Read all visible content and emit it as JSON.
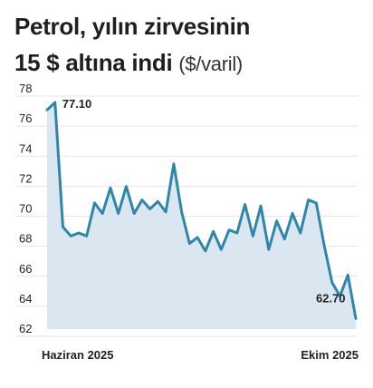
{
  "header": {
    "title_line1": "Petrol, yılın zirvesinin",
    "title_line2": "15 $ altına indi",
    "unit": "($/varil)"
  },
  "chart_data": {
    "type": "area",
    "title": "Petrol, yılın zirvesinin 15 $ altına indi",
    "ylabel": "($/varil)",
    "ylim": [
      62,
      78
    ],
    "y_ticks": [
      78,
      76,
      74,
      72,
      70,
      68,
      66,
      64,
      62
    ],
    "x_labels": [
      "Haziran 2025",
      "Ekim 2025"
    ],
    "annotations": [
      {
        "label": "77.10",
        "index": 1
      },
      {
        "label": "62.70",
        "index": 42
      }
    ],
    "colors": {
      "line": "#2f86a8",
      "fill": "#dbe7f0"
    },
    "series": [
      {
        "values": [
          76.6,
          77.1,
          68.8,
          68.2,
          68.4,
          68.2,
          70.4,
          69.7,
          71.4,
          69.7,
          71.5,
          69.7,
          70.6,
          70.0,
          70.5,
          69.8,
          73.0,
          69.8,
          67.7,
          68.1,
          67.2,
          68.5,
          67.3,
          68.6,
          68.4,
          70.3,
          68.2,
          70.2,
          67.3,
          69.2,
          68.0,
          69.7,
          68.4,
          70.6,
          70.4,
          67.6,
          65.1,
          64.2,
          65.6,
          62.7
        ]
      }
    ]
  }
}
